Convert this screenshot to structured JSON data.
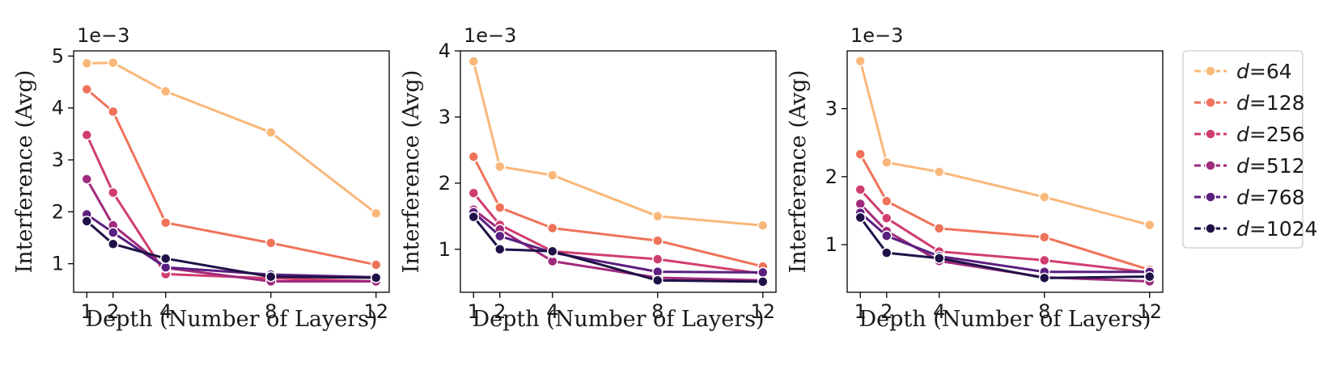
{
  "chart_data": [
    {
      "type": "line",
      "xlabel": "Depth (Number of Layers)",
      "ylabel": "Interference (Avg)",
      "y_scale_label": "1e−3",
      "x": [
        1,
        2,
        4,
        8,
        12
      ],
      "xticks": [
        1,
        2,
        4,
        8,
        12
      ],
      "yticks": [
        1,
        2,
        3,
        4,
        5
      ],
      "xlim": [
        0.5,
        12.5
      ],
      "ylim": [
        0.45,
        5.1
      ],
      "series": [
        {
          "name": "d=64",
          "color": "#f9b87a",
          "values": [
            4.86,
            4.87,
            4.32,
            3.53,
            1.97
          ]
        },
        {
          "name": "d=128",
          "color": "#ef735a",
          "values": [
            4.36,
            3.93,
            1.79,
            1.4,
            0.98
          ]
        },
        {
          "name": "d=256",
          "color": "#d03e6e",
          "values": [
            3.48,
            2.37,
            0.8,
            0.72,
            0.66
          ]
        },
        {
          "name": "d=512",
          "color": "#a02a7c",
          "values": [
            2.63,
            1.74,
            0.92,
            0.66,
            0.66
          ]
        },
        {
          "name": "d=768",
          "color": "#5a1f7f",
          "values": [
            1.95,
            1.6,
            0.93,
            0.79,
            0.74
          ]
        },
        {
          "name": "d=1024",
          "color": "#1f1147",
          "values": [
            1.82,
            1.38,
            1.1,
            0.75,
            0.73
          ]
        }
      ]
    },
    {
      "type": "line",
      "xlabel": "Depth (Number of Layers)",
      "ylabel": "Interference (Avg)",
      "y_scale_label": "1e−3",
      "x": [
        1,
        2,
        4,
        8,
        12
      ],
      "xticks": [
        1,
        2,
        4,
        8,
        12
      ],
      "yticks": [
        1,
        2,
        3,
        4
      ],
      "xlim": [
        0.5,
        12.5
      ],
      "ylim": [
        0.35,
        4.0
      ],
      "series": [
        {
          "name": "d=64",
          "color": "#f9b87a",
          "values": [
            3.84,
            2.25,
            2.12,
            1.5,
            1.36
          ]
        },
        {
          "name": "d=128",
          "color": "#ef735a",
          "values": [
            2.4,
            1.63,
            1.32,
            1.13,
            0.74
          ]
        },
        {
          "name": "d=256",
          "color": "#d03e6e",
          "values": [
            1.85,
            1.37,
            0.97,
            0.85,
            0.63
          ]
        },
        {
          "name": "d=512",
          "color": "#a02a7c",
          "values": [
            1.6,
            1.3,
            0.82,
            0.57,
            0.53
          ]
        },
        {
          "name": "d=768",
          "color": "#5a1f7f",
          "values": [
            1.56,
            1.2,
            0.95,
            0.66,
            0.65
          ]
        },
        {
          "name": "d=1024",
          "color": "#1f1147",
          "values": [
            1.49,
            1.0,
            0.97,
            0.53,
            0.51
          ]
        }
      ]
    },
    {
      "type": "line",
      "xlabel": "Depth (Number of Layers)",
      "ylabel": "Interference (Avg)",
      "y_scale_label": "1e−3",
      "x": [
        1,
        2,
        4,
        8,
        12
      ],
      "xticks": [
        1,
        2,
        4,
        8,
        12
      ],
      "yticks": [
        1,
        2,
        3
      ],
      "xlim": [
        0.5,
        12.5
      ],
      "ylim": [
        0.3,
        3.85
      ],
      "series": [
        {
          "name": "d=64",
          "color": "#f9b87a",
          "values": [
            3.7,
            2.21,
            2.07,
            1.7,
            1.29
          ]
        },
        {
          "name": "d=128",
          "color": "#ef735a",
          "values": [
            2.33,
            1.64,
            1.24,
            1.11,
            0.63
          ]
        },
        {
          "name": "d=256",
          "color": "#d03e6e",
          "values": [
            1.81,
            1.39,
            0.9,
            0.77,
            0.59
          ]
        },
        {
          "name": "d=512",
          "color": "#a02a7c",
          "values": [
            1.6,
            1.2,
            0.76,
            0.52,
            0.46
          ]
        },
        {
          "name": "d=768",
          "color": "#5a1f7f",
          "values": [
            1.47,
            1.13,
            0.83,
            0.6,
            0.6
          ]
        },
        {
          "name": "d=1024",
          "color": "#1f1147",
          "values": [
            1.4,
            0.88,
            0.8,
            0.51,
            0.53
          ]
        }
      ]
    }
  ],
  "legend": {
    "position": "right",
    "items": [
      {
        "var": "d",
        "value": "=64",
        "color": "#f9b87a"
      },
      {
        "var": "d",
        "value": "=128",
        "color": "#ef735a"
      },
      {
        "var": "d",
        "value": "=256",
        "color": "#d03e6e"
      },
      {
        "var": "d",
        "value": "=512",
        "color": "#a02a7c"
      },
      {
        "var": "d",
        "value": "=768",
        "color": "#5a1f7f"
      },
      {
        "var": "d",
        "value": "=1024",
        "color": "#1f1147"
      }
    ]
  }
}
